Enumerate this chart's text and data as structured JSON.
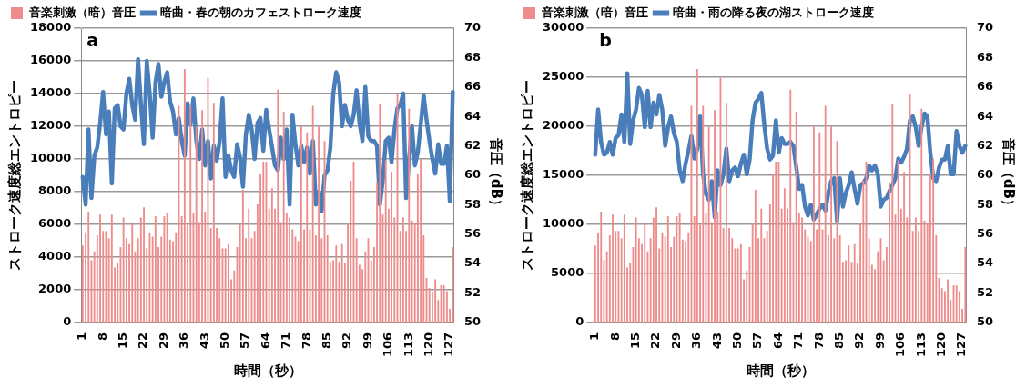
{
  "chart_data": [
    {
      "type": "bar",
      "annotations": [
        "a"
      ],
      "xlabel": "時間（秒）",
      "ylabel": "ストローク速度総エントロピー",
      "y2label": "音圧（dB）",
      "legend": "top",
      "grid": "y",
      "marker": "none",
      "categories": [
        "1",
        null,
        null,
        null,
        null,
        null,
        null,
        "8",
        null,
        null,
        null,
        null,
        null,
        null,
        "15",
        null,
        null,
        null,
        null,
        null,
        null,
        "22",
        null,
        null,
        null,
        null,
        null,
        null,
        "29",
        null,
        null,
        null,
        null,
        null,
        null,
        "36",
        null,
        null,
        null,
        null,
        null,
        null,
        "43",
        null,
        null,
        null,
        null,
        null,
        null,
        "50",
        null,
        null,
        null,
        null,
        null,
        null,
        "57",
        null,
        null,
        null,
        null,
        null,
        null,
        "64",
        null,
        null,
        null,
        null,
        null,
        null,
        "71",
        null,
        null,
        null,
        null,
        null,
        null,
        "78",
        null,
        null,
        null,
        null,
        null,
        null,
        "85",
        null,
        null,
        null,
        null,
        null,
        null,
        "92",
        null,
        null,
        null,
        null,
        null,
        null,
        "99",
        null,
        null,
        null,
        null,
        null,
        null,
        "106",
        null,
        null,
        null,
        null,
        null,
        null,
        "113",
        null,
        null,
        null,
        null,
        null,
        null,
        "120",
        null,
        null,
        null,
        null,
        null,
        null,
        "127",
        null
      ],
      "ylim": [
        0,
        18000
      ],
      "yticks": [
        0,
        2000,
        4000,
        6000,
        8000,
        10000,
        12000,
        14000,
        16000,
        18000
      ],
      "y2lim": [
        50,
        70
      ],
      "y2ticks": [
        50,
        52,
        54,
        56,
        58,
        60,
        62,
        64,
        66,
        68,
        70
      ],
      "series": [
        {
          "name": "音楽刺激（暗）音圧",
          "axis": "y2",
          "color": "#ee8c8c",
          "values": [
            55.2,
            56.1,
            57.5,
            54.2,
            54.8,
            55.9,
            57.3,
            56.2,
            56.2,
            55.7,
            57.3,
            53.7,
            54.0,
            55.1,
            57.1,
            55.7,
            55.3,
            56.8,
            54.8,
            55.7,
            57.1,
            57.8,
            55.0,
            56.1,
            55.8,
            57.2,
            55.1,
            55.8,
            57.2,
            57.4,
            55.6,
            55.5,
            56.1,
            64.7,
            57.2,
            67.2,
            56.6,
            64.7,
            57.4,
            63.3,
            56.8,
            64.4,
            57.5,
            66.6,
            56.4,
            64.9,
            56.4,
            55.7,
            55.0,
            55.0,
            55.3,
            52.9,
            53.5,
            55.1,
            56.7,
            59.0,
            55.7,
            57.7,
            55.7,
            56.2,
            58.0,
            60.1,
            60.9,
            60.9,
            57.7,
            59.1,
            57.7,
            65.8,
            56.8,
            64.3,
            57.4,
            57.1,
            56.3,
            55.8,
            55.5,
            63.3,
            56.3,
            62.9,
            56.3,
            64.7,
            55.9,
            63.3,
            55.7,
            62.3,
            55.9,
            54.1,
            54.2,
            55.2,
            54.1,
            55.3,
            54.0,
            56.7,
            59.6,
            60.9,
            55.7,
            53.9,
            53.6,
            54.8,
            55.7,
            54.2,
            55.1,
            59.5,
            64.8,
            57.3,
            61.0,
            57.7,
            60.2,
            57.1,
            65.5,
            56.2,
            57.1,
            56.2,
            64.5,
            56.9,
            56.7,
            60.1,
            61.1,
            55.9,
            53.0,
            52.3,
            52.1,
            52.9,
            51.5,
            52.5,
            52.5,
            52.1,
            50.9,
            55.1
          ]
        },
        {
          "name": "暗曲・春の朝のカフェストローク速度",
          "type": "line",
          "color": "#4a7ebb",
          "values": [
            8900,
            7200,
            11800,
            7600,
            10200,
            10700,
            12200,
            14100,
            11500,
            12900,
            8500,
            13100,
            13300,
            12000,
            11800,
            14000,
            14900,
            13300,
            12400,
            16100,
            13300,
            10900,
            16000,
            14000,
            11300,
            14700,
            15800,
            13800,
            14700,
            15300,
            13500,
            12900,
            11500,
            12500,
            11100,
            10200,
            13400,
            12100,
            13700,
            11100,
            10000,
            11800,
            9600,
            11100,
            8800,
            10800,
            9900,
            11100,
            13700,
            8900,
            10200,
            9300,
            8900,
            10900,
            10100,
            8300,
            11500,
            12700,
            11800,
            10000,
            12200,
            12500,
            10500,
            13000,
            11800,
            10700,
            9600,
            9300,
            11300,
            10000,
            11800,
            7200,
            12700,
            10900,
            9600,
            10800,
            9800,
            10700,
            9100,
            11100,
            7200,
            8000,
            6800,
            9000,
            9300,
            10700,
            14000,
            15300,
            14700,
            12000,
            13300,
            12400,
            12000,
            12700,
            14200,
            12200,
            11100,
            14400,
            11400,
            11100,
            11100,
            10800,
            7200,
            8700,
            11100,
            11300,
            9800,
            11800,
            13100,
            13300,
            14000,
            7600,
            10000,
            12000,
            9600,
            10400,
            12100,
            13900,
            12400,
            11100,
            10000,
            9100,
            10900,
            9700,
            9700,
            10800,
            7400,
            14100
          ]
        }
      ]
    },
    {
      "type": "bar",
      "annotations": [
        "b"
      ],
      "xlabel": "時間（秒）",
      "ylabel": "ストローク速度総エントロピー",
      "y2label": "音圧（dB）",
      "legend": "top",
      "grid": "y",
      "marker": "none",
      "categories": [
        "1",
        null,
        null,
        null,
        null,
        null,
        null,
        "8",
        null,
        null,
        null,
        null,
        null,
        null,
        "15",
        null,
        null,
        null,
        null,
        null,
        null,
        "22",
        null,
        null,
        null,
        null,
        null,
        null,
        "29",
        null,
        null,
        null,
        null,
        null,
        null,
        "36",
        null,
        null,
        null,
        null,
        null,
        null,
        "43",
        null,
        null,
        null,
        null,
        null,
        null,
        "50",
        null,
        null,
        null,
        null,
        null,
        null,
        "57",
        null,
        null,
        null,
        null,
        null,
        null,
        "64",
        null,
        null,
        null,
        null,
        null,
        null,
        "71",
        null,
        null,
        null,
        null,
        null,
        null,
        "78",
        null,
        null,
        null,
        null,
        null,
        null,
        "85",
        null,
        null,
        null,
        null,
        null,
        null,
        "92",
        null,
        null,
        null,
        null,
        null,
        null,
        "99",
        null,
        null,
        null,
        null,
        null,
        null,
        "106",
        null,
        null,
        null,
        null,
        null,
        null,
        "113",
        null,
        null,
        null,
        null,
        null,
        null,
        "120",
        null,
        null,
        null,
        null,
        null,
        null,
        "127",
        null
      ],
      "ylim": [
        0,
        30000
      ],
      "yticks": [
        0,
        5000,
        10000,
        15000,
        20000,
        25000,
        30000
      ],
      "y2lim": [
        50,
        70
      ],
      "y2ticks": [
        50,
        52,
        54,
        56,
        58,
        60,
        62,
        64,
        66,
        68,
        70
      ],
      "series": [
        {
          "name": "音楽刺激（暗）音圧",
          "axis": "y2",
          "color": "#ee8c8c",
          "values": [
            55.2,
            56.1,
            57.5,
            54.2,
            54.8,
            55.9,
            57.3,
            56.2,
            56.2,
            55.7,
            57.3,
            53.7,
            54.0,
            55.1,
            57.1,
            55.7,
            55.3,
            56.8,
            54.8,
            55.7,
            57.1,
            57.8,
            55.0,
            56.1,
            55.8,
            57.2,
            55.1,
            55.8,
            57.2,
            57.4,
            55.6,
            55.5,
            56.1,
            64.7,
            57.2,
            67.2,
            56.6,
            64.7,
            57.4,
            63.3,
            56.8,
            64.4,
            57.5,
            66.6,
            56.4,
            64.9,
            56.4,
            55.7,
            55.0,
            55.0,
            55.3,
            52.9,
            53.5,
            55.1,
            56.7,
            59.0,
            55.7,
            57.7,
            55.7,
            56.2,
            58.0,
            60.1,
            60.9,
            60.9,
            57.7,
            59.1,
            57.7,
            65.8,
            56.8,
            64.3,
            57.4,
            57.1,
            56.3,
            55.8,
            55.5,
            63.3,
            56.3,
            62.9,
            56.3,
            64.7,
            55.9,
            63.3,
            55.7,
            62.3,
            55.9,
            54.1,
            54.2,
            55.2,
            54.1,
            55.3,
            54.0,
            56.7,
            59.6,
            60.9,
            55.7,
            53.9,
            53.6,
            54.8,
            55.7,
            54.2,
            55.1,
            59.5,
            64.8,
            57.3,
            61.0,
            57.7,
            60.2,
            57.1,
            65.5,
            56.2,
            57.1,
            56.2,
            64.5,
            56.9,
            56.7,
            60.1,
            61.1,
            55.9,
            53.0,
            52.3,
            52.1,
            52.9,
            51.5,
            52.5,
            52.5,
            52.1,
            50.9,
            55.1
          ]
        },
        {
          "name": "暗曲・雨の降る夜の湖ストローク速度",
          "type": "line",
          "color": "#4a7ebb",
          "values": [
            17100,
            21700,
            18400,
            17100,
            17300,
            18400,
            17100,
            18800,
            19100,
            21200,
            18400,
            25400,
            18200,
            20600,
            21700,
            23900,
            23200,
            19900,
            23600,
            19900,
            22400,
            21200,
            23200,
            21700,
            18000,
            19900,
            21000,
            19300,
            18400,
            15500,
            14400,
            16200,
            17500,
            19000,
            16700,
            17700,
            21000,
            15100,
            13100,
            12500,
            14400,
            10700,
            15500,
            14000,
            15100,
            17700,
            14400,
            15500,
            15800,
            14900,
            16200,
            17100,
            15100,
            16600,
            20600,
            22400,
            22800,
            23400,
            20200,
            17700,
            16600,
            17000,
            20600,
            17300,
            18800,
            18200,
            18200,
            18400,
            18000,
            15800,
            13600,
            14000,
            11800,
            10900,
            12000,
            10500,
            11000,
            11600,
            12000,
            11400,
            13200,
            14400,
            14700,
            10300,
            14700,
            11800,
            13200,
            14000,
            15300,
            13600,
            12100,
            14000,
            14200,
            14700,
            16000,
            15500,
            16000,
            15100,
            11800,
            12500,
            12700,
            13400,
            14000,
            14700,
            16700,
            16300,
            16900,
            17700,
            20600,
            21000,
            19900,
            18000,
            19900,
            21300,
            21000,
            17300,
            14700,
            14400,
            15800,
            16600,
            16600,
            18000,
            15100,
            15100,
            19500,
            18000,
            17300,
            18000
          ]
        }
      ]
    }
  ]
}
